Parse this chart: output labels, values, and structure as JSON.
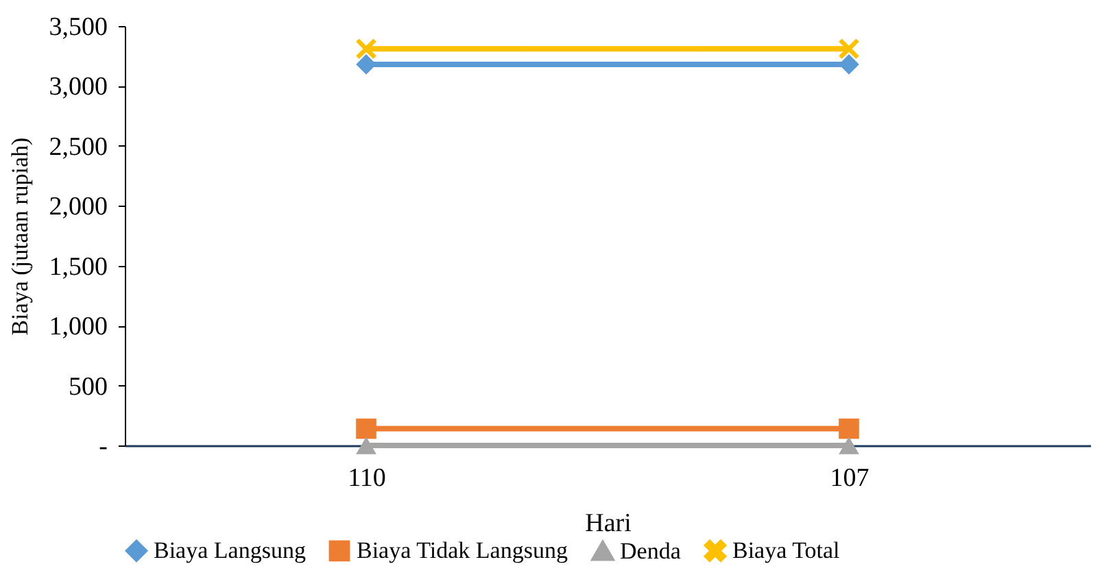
{
  "chart_data": {
    "type": "line",
    "xlabel": "Hari",
    "ylabel": "Biaya (jutaan rupiah)",
    "categories": [
      "110",
      "107"
    ],
    "series": [
      {
        "name": "Biaya Langsung",
        "color": "#5b9bd5",
        "marker": "diamond",
        "values": [
          3180,
          3180
        ]
      },
      {
        "name": "Biaya Tidak Langsung",
        "color": "#ed7d31",
        "marker": "square",
        "values": [
          140,
          140
        ]
      },
      {
        "name": "Denda",
        "color": "#a5a5a5",
        "marker": "triangle",
        "values": [
          0,
          0
        ]
      },
      {
        "name": "Biaya Total",
        "color": "#ffc000",
        "marker": "cross",
        "values": [
          3310,
          3310
        ]
      }
    ],
    "ylim": [
      0,
      3500
    ],
    "yticks": [
      {
        "value": 0,
        "label": "-"
      },
      500,
      {
        "value": 1000,
        "label": "1,000"
      },
      {
        "value": 1500,
        "label": "1,500"
      },
      {
        "value": 2000,
        "label": "2,000"
      },
      {
        "value": 2500,
        "label": "2,500"
      },
      {
        "value": 3000,
        "label": "3,000"
      },
      {
        "value": 3500,
        "label": "3,500"
      }
    ],
    "grid": false,
    "legend": "bottom"
  }
}
